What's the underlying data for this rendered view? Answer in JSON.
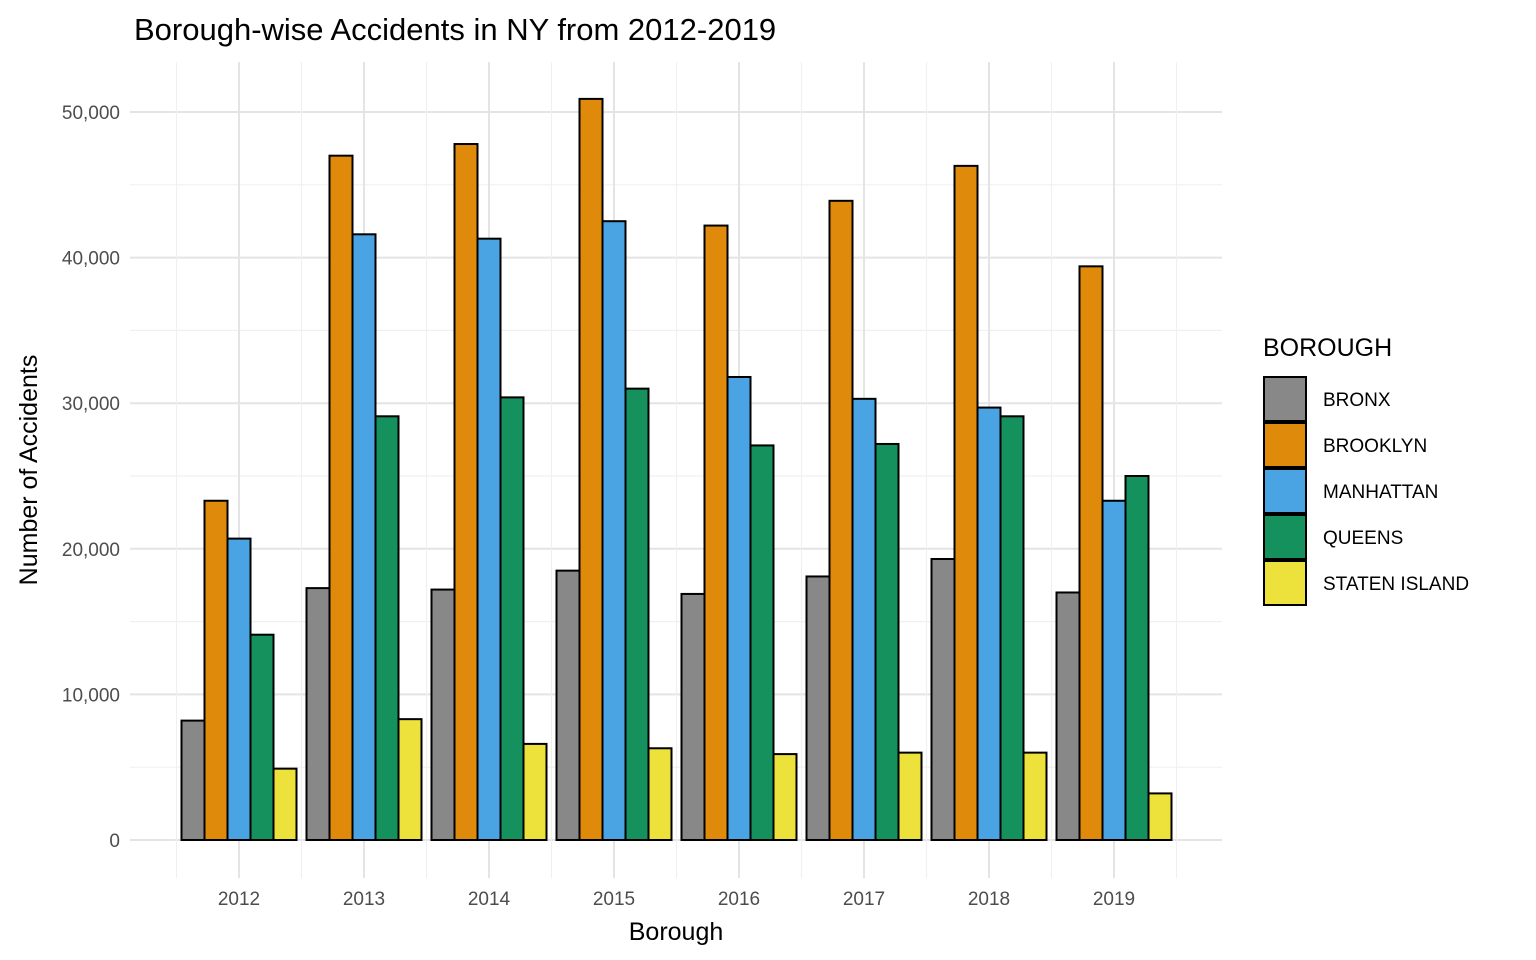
{
  "chart_data": {
    "type": "bar",
    "title": "Borough-wise Accidents in NY from 2012-2019",
    "xlabel": "Borough",
    "ylabel": "Number of Accidents",
    "categories": [
      "2012",
      "2013",
      "2014",
      "2015",
      "2016",
      "2017",
      "2018",
      "2019"
    ],
    "ylim": [
      0,
      53500
    ],
    "yticks": [
      0,
      10000,
      20000,
      30000,
      40000,
      50000
    ],
    "ytick_labels": [
      "0",
      "10,000",
      "20,000",
      "30,000",
      "40,000",
      "50,000"
    ],
    "grid": true,
    "legend": {
      "title": "BOROUGH",
      "position": "right"
    },
    "series": [
      {
        "name": "BRONX",
        "color": "#888888",
        "values": [
          8200,
          17300,
          17200,
          18500,
          16900,
          18100,
          19300,
          17000
        ]
      },
      {
        "name": "BROOKLYN",
        "color": "#E08A0B",
        "values": [
          23300,
          47000,
          47800,
          50900,
          42200,
          43900,
          46300,
          39400
        ]
      },
      {
        "name": "MANHATTAN",
        "color": "#4AA3E3",
        "values": [
          20700,
          41600,
          41300,
          42500,
          31800,
          30300,
          29700,
          23300
        ]
      },
      {
        "name": "QUEENS",
        "color": "#15915E",
        "values": [
          14100,
          29100,
          30400,
          31000,
          27100,
          27200,
          29100,
          25000
        ]
      },
      {
        "name": "STATEN ISLAND",
        "color": "#EDE13B",
        "values": [
          4900,
          8300,
          6600,
          6300,
          5900,
          6000,
          6000,
          3200
        ]
      }
    ]
  }
}
